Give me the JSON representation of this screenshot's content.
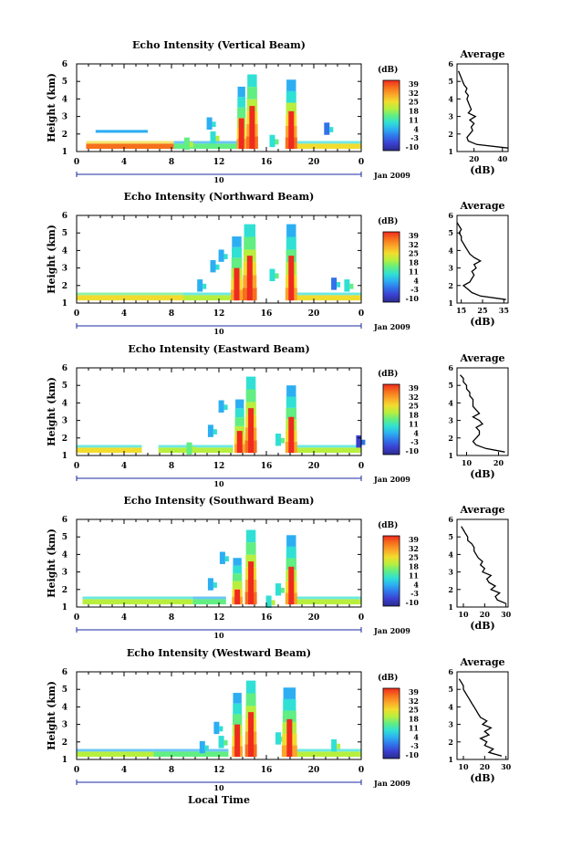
{
  "figure": {
    "xlabel": "Local Time",
    "date_label": "Jan 2009",
    "day_label": "10",
    "colorbar_unit": "(dB)",
    "colorbar_ticks": [
      "39",
      "32",
      "25",
      "18",
      "11",
      "4",
      "-3",
      "-10"
    ],
    "colorbar_colors": [
      "#ef2a1f",
      "#f6701c",
      "#fba52a",
      "#f2dc2e",
      "#b8ef3e",
      "#62ee82",
      "#30e0d4",
      "#2caef2",
      "#3172ea",
      "#3b3fcf",
      "#2b2a8c"
    ],
    "profile_title": "Average",
    "profile_xlabel": "(dB)",
    "ylabel": "Height (km)"
  },
  "chart_data": [
    {
      "type": "heatmap",
      "title": "Echo Intensity (Vertical Beam)",
      "xlabel": "",
      "ylabel": "Height (km)",
      "x_ticks": [
        "0",
        "4",
        "8",
        "12",
        "16",
        "20",
        "0"
      ],
      "xlim": [
        0,
        24
      ],
      "y_ticks": [
        "1",
        "2",
        "3",
        "4",
        "5",
        "6"
      ],
      "ylim": [
        1,
        6
      ],
      "clim": [
        -10,
        39
      ],
      "lowband": [
        {
          "t0": 0.8,
          "t1": 8.2,
          "v": 36
        },
        {
          "t0": 8.2,
          "t1": 14.0,
          "v": 16
        },
        {
          "t0": 18.5,
          "t1": 24,
          "v": 22
        }
      ],
      "layer": [
        {
          "t0": 1.6,
          "t1": 6.0,
          "h": 2.15,
          "v": 6
        }
      ],
      "columns": [
        {
          "t0": 13.5,
          "t1": 14.3,
          "top": 4.7,
          "v": 28
        },
        {
          "t0": 14.3,
          "t1": 15.3,
          "top": 5.4,
          "v": 33
        },
        {
          "t0": 17.6,
          "t1": 18.6,
          "top": 5.1,
          "v": 32
        }
      ],
      "patches": [
        {
          "t": 11.2,
          "h": 2.6,
          "v": 4
        },
        {
          "t": 11.5,
          "h": 1.8,
          "v": 12
        },
        {
          "t": 16.5,
          "h": 1.6,
          "v": 8
        },
        {
          "t": 21.1,
          "h": 2.3,
          "v": 2
        },
        {
          "t": 9.3,
          "h": 1.45,
          "v": 14
        }
      ],
      "profile": {
        "x_ticks": [
          "20",
          "40"
        ],
        "xlim": [
          8,
          44
        ],
        "heights": [
          1.2,
          1.4,
          1.6,
          1.8,
          2.0,
          2.2,
          2.4,
          2.6,
          2.8,
          3.0,
          3.2,
          3.4,
          3.6,
          3.8,
          4.0,
          4.2,
          4.4,
          4.6,
          4.8,
          5.0,
          5.2,
          5.4,
          5.6
        ],
        "values": [
          44,
          22,
          16,
          15,
          17,
          19,
          18,
          20,
          17,
          21,
          16,
          18,
          17,
          16,
          15,
          16,
          14,
          15,
          13,
          12,
          11,
          10,
          9
        ]
      }
    },
    {
      "type": "heatmap",
      "title": "Echo Intensity (Northward Beam)",
      "xlabel": "",
      "ylabel": "Height (km)",
      "x_ticks": [
        "0",
        "4",
        "8",
        "12",
        "16",
        "20",
        "0"
      ],
      "xlim": [
        0,
        24
      ],
      "y_ticks": [
        "1",
        "2",
        "3",
        "4",
        "5",
        "6"
      ],
      "ylim": [
        1,
        6
      ],
      "clim": [
        -10,
        39
      ],
      "lowband": [
        {
          "t0": 0.0,
          "t1": 9.0,
          "v": 26
        },
        {
          "t0": 9.0,
          "t1": 13.2,
          "v": 18
        },
        {
          "t0": 18.5,
          "t1": 24,
          "v": 22
        }
      ],
      "layer": [],
      "columns": [
        {
          "t0": 13.0,
          "t1": 14.0,
          "top": 4.8,
          "v": 30
        },
        {
          "t0": 14.0,
          "t1": 15.2,
          "top": 5.5,
          "v": 33
        },
        {
          "t0": 17.6,
          "t1": 18.6,
          "top": 5.5,
          "v": 31
        }
      ],
      "patches": [
        {
          "t": 11.5,
          "h": 3.1,
          "v": 5
        },
        {
          "t": 12.2,
          "h": 3.7,
          "v": 3
        },
        {
          "t": 10.4,
          "h": 2.0,
          "v": 4
        },
        {
          "t": 16.5,
          "h": 2.6,
          "v": 8
        },
        {
          "t": 21.7,
          "h": 2.1,
          "v": 2
        },
        {
          "t": 22.8,
          "h": 2.0,
          "v": 10
        }
      ],
      "profile": {
        "x_ticks": [
          "15",
          "25",
          "35"
        ],
        "xlim": [
          13,
          37
        ],
        "heights": [
          1.2,
          1.4,
          1.6,
          1.8,
          2.0,
          2.2,
          2.4,
          2.6,
          2.8,
          3.0,
          3.2,
          3.4,
          3.6,
          3.8,
          4.0,
          4.2,
          4.4,
          4.6,
          4.8,
          5.0,
          5.2,
          5.4,
          5.6
        ],
        "values": [
          36,
          24,
          20,
          18,
          16,
          19,
          20,
          21,
          20,
          22,
          21,
          24,
          21,
          19,
          18,
          17,
          16,
          15,
          15,
          14,
          15,
          14,
          13
        ]
      }
    },
    {
      "type": "heatmap",
      "title": "Echo Intensity (Eastward Beam)",
      "xlabel": "",
      "ylabel": "Height (km)",
      "x_ticks": [
        "0",
        "4",
        "8",
        "12",
        "16",
        "20",
        "0"
      ],
      "xlim": [
        0,
        24
      ],
      "y_ticks": [
        "1",
        "2",
        "3",
        "4",
        "5",
        "6"
      ],
      "ylim": [
        1,
        6
      ],
      "clim": [
        -10,
        39
      ],
      "lowband": [
        {
          "t0": 0.0,
          "t1": 5.5,
          "v": 22
        },
        {
          "t0": 6.9,
          "t1": 13.2,
          "v": 18
        },
        {
          "t0": 18.5,
          "t1": 24,
          "v": 20
        }
      ],
      "layer": [],
      "columns": [
        {
          "t0": 13.3,
          "t1": 14.2,
          "top": 4.2,
          "v": 29
        },
        {
          "t0": 14.2,
          "t1": 15.2,
          "top": 5.5,
          "v": 33
        },
        {
          "t0": 17.6,
          "t1": 18.6,
          "top": 5.0,
          "v": 31
        }
      ],
      "patches": [
        {
          "t": 11.3,
          "h": 2.4,
          "v": 5
        },
        {
          "t": 12.2,
          "h": 3.8,
          "v": 3
        },
        {
          "t": 9.5,
          "h": 1.4,
          "v": 14
        },
        {
          "t": 17.0,
          "h": 1.9,
          "v": 8
        },
        {
          "t": 23.8,
          "h": 1.8,
          "v": -6
        }
      ],
      "profile": {
        "x_ticks": [
          "10",
          "20"
        ],
        "xlim": [
          7,
          23
        ],
        "heights": [
          1.2,
          1.4,
          1.6,
          1.8,
          2.0,
          2.2,
          2.4,
          2.6,
          2.8,
          3.0,
          3.2,
          3.4,
          3.6,
          3.8,
          4.0,
          4.2,
          4.4,
          4.6,
          4.8,
          5.0,
          5.2,
          5.4,
          5.6
        ],
        "values": [
          22,
          16,
          13,
          12,
          13,
          14,
          14,
          13,
          15,
          14,
          12,
          14,
          13,
          12,
          12,
          12,
          11,
          11,
          10,
          10,
          9,
          9,
          8
        ]
      }
    },
    {
      "type": "heatmap",
      "title": "Echo Intensity (Southward Beam)",
      "xlabel": "",
      "ylabel": "Height (km)",
      "x_ticks": [
        "0",
        "4",
        "8",
        "12",
        "16",
        "20",
        "0"
      ],
      "xlim": [
        0,
        24
      ],
      "y_ticks": [
        "1",
        "2",
        "3",
        "4",
        "5",
        "6"
      ],
      "ylim": [
        1,
        6
      ],
      "clim": [
        -10,
        39
      ],
      "lowband": [
        {
          "t0": 0.5,
          "t1": 9.8,
          "v": 20
        },
        {
          "t0": 9.8,
          "t1": 12.6,
          "v": 14
        },
        {
          "t0": 18.5,
          "t1": 24,
          "v": 21
        }
      ],
      "layer": [],
      "columns": [
        {
          "t0": 13.1,
          "t1": 14.0,
          "top": 3.8,
          "v": 28
        },
        {
          "t0": 14.2,
          "t1": 15.2,
          "top": 5.4,
          "v": 33
        },
        {
          "t0": 17.6,
          "t1": 18.6,
          "top": 5.1,
          "v": 31
        }
      ],
      "patches": [
        {
          "t": 11.3,
          "h": 2.3,
          "v": 4
        },
        {
          "t": 12.3,
          "h": 3.8,
          "v": 3
        },
        {
          "t": 17.0,
          "h": 2.0,
          "v": 8
        },
        {
          "t": 16.2,
          "h": 1.3,
          "v": 12
        }
      ],
      "profile": {
        "x_ticks": [
          "10",
          "20",
          "30"
        ],
        "xlim": [
          7,
          31
        ],
        "heights": [
          1.2,
          1.4,
          1.6,
          1.8,
          2.0,
          2.2,
          2.4,
          2.6,
          2.8,
          3.0,
          3.2,
          3.4,
          3.6,
          3.8,
          4.0,
          4.2,
          4.4,
          4.6,
          4.8,
          5.0,
          5.2,
          5.4,
          5.6
        ],
        "values": [
          30,
          26,
          25,
          27,
          23,
          25,
          22,
          21,
          23,
          19,
          20,
          18,
          19,
          17,
          16,
          15,
          15,
          14,
          12,
          12,
          11,
          10,
          9
        ]
      }
    },
    {
      "type": "heatmap",
      "title": "Echo Intensity (Westward Beam)",
      "xlabel": "Local Time",
      "ylabel": "Height (km)",
      "x_ticks": [
        "0",
        "4",
        "8",
        "12",
        "16",
        "20",
        "0"
      ],
      "xlim": [
        0,
        24
      ],
      "y_ticks": [
        "1",
        "2",
        "3",
        "4",
        "5",
        "6"
      ],
      "ylim": [
        1,
        6
      ],
      "clim": [
        -10,
        39
      ],
      "lowband": [
        {
          "t0": 0.0,
          "t1": 6.5,
          "v": 17
        },
        {
          "t0": 6.5,
          "t1": 12.8,
          "v": 14
        },
        {
          "t0": 18.5,
          "t1": 24,
          "v": 18
        }
      ],
      "layer": [],
      "columns": [
        {
          "t0": 13.1,
          "t1": 14.0,
          "top": 4.8,
          "v": 29
        },
        {
          "t0": 14.2,
          "t1": 15.2,
          "top": 5.5,
          "v": 33
        },
        {
          "t0": 17.3,
          "t1": 18.6,
          "top": 5.1,
          "v": 31
        }
      ],
      "patches": [
        {
          "t": 11.8,
          "h": 2.8,
          "v": 4
        },
        {
          "t": 12.2,
          "h": 2.0,
          "v": 9
        },
        {
          "t": 10.6,
          "h": 1.7,
          "v": 5
        },
        {
          "t": 17.0,
          "h": 2.2,
          "v": 8
        },
        {
          "t": 21.7,
          "h": 1.8,
          "v": 12
        }
      ],
      "profile": {
        "x_ticks": [
          "10",
          "20",
          "30"
        ],
        "xlim": [
          7,
          31
        ],
        "heights": [
          1.2,
          1.4,
          1.6,
          1.8,
          2.0,
          2.2,
          2.4,
          2.6,
          2.8,
          3.0,
          3.2,
          3.4,
          3.6,
          3.8,
          4.0,
          4.2,
          4.4,
          4.6,
          4.8,
          5.0,
          5.2,
          5.4,
          5.6
        ],
        "values": [
          28,
          22,
          24,
          20,
          21,
          18,
          22,
          20,
          23,
          19,
          21,
          18,
          17,
          16,
          15,
          14,
          13,
          12,
          11,
          10,
          10,
          9,
          8
        ]
      }
    }
  ]
}
